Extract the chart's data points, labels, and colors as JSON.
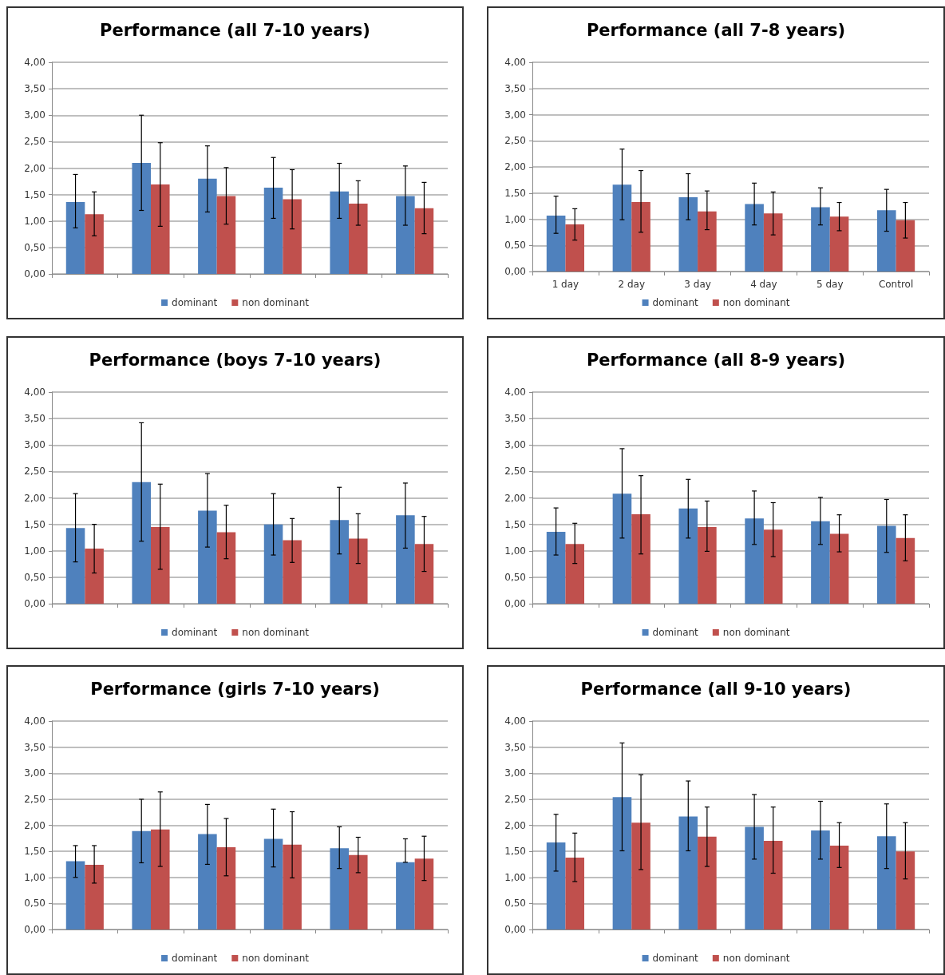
{
  "chart_data": [
    {
      "type": "bar",
      "title": "Performance (all 7-10 years)",
      "categories": [
        null,
        null,
        null,
        null,
        null,
        null
      ],
      "tick_labels": "y",
      "grid": "y",
      "legend": "bottom",
      "ylim": [
        0,
        4
      ],
      "yticks": [
        {
          "value": 0,
          "label": "0,00"
        },
        {
          "value": 0.5,
          "label": "0,50"
        },
        {
          "value": 1,
          "label": "1,00"
        },
        {
          "value": 1.5,
          "label": "1,50"
        },
        {
          "value": 2,
          "label": "2,00"
        },
        {
          "value": 2.5,
          "label": "2,50"
        },
        {
          "value": 3,
          "label": "3,00"
        },
        {
          "value": 3.5,
          "label": "3,50"
        },
        {
          "value": 4,
          "label": "4,00"
        }
      ],
      "series": [
        {
          "name": "dominant",
          "color": "#4f81bd",
          "values": [
            1.36,
            2.1,
            1.8,
            1.63,
            1.56,
            1.47
          ],
          "errors": [
            [
              0.87,
              1.88
            ],
            [
              1.2,
              3.0
            ],
            [
              1.17,
              2.42
            ],
            [
              1.05,
              2.2
            ],
            [
              1.05,
              2.09
            ],
            [
              0.92,
              2.04
            ]
          ]
        },
        {
          "name": "non dominant",
          "color": "#c0504d",
          "values": [
            1.13,
            1.69,
            1.47,
            1.41,
            1.33,
            1.24
          ],
          "errors": [
            [
              0.72,
              1.55
            ],
            [
              0.9,
              2.48
            ],
            [
              0.94,
              2.01
            ],
            [
              0.85,
              1.97
            ],
            [
              0.92,
              1.76
            ],
            [
              0.76,
              1.73
            ]
          ]
        }
      ]
    },
    {
      "type": "bar",
      "title": "Performance (all 7-8 years)",
      "categories": [
        "1 day",
        "2 day",
        "3 day",
        "4 day",
        "5 day",
        "Control"
      ],
      "grid": "y",
      "legend": "bottom",
      "ylim": [
        0,
        4
      ],
      "yticks": [
        {
          "value": 0,
          "label": "0,00"
        },
        {
          "value": 0.5,
          "label": "0,50"
        },
        {
          "value": 1,
          "label": "1,00"
        },
        {
          "value": 1.5,
          "label": "1,50"
        },
        {
          "value": 2,
          "label": "2,00"
        },
        {
          "value": 2.5,
          "label": "2,50"
        },
        {
          "value": 3,
          "label": "3,00"
        },
        {
          "value": 3.5,
          "label": "3,50"
        },
        {
          "value": 4,
          "label": "4,00"
        }
      ],
      "series": [
        {
          "name": "dominant",
          "color": "#4f81bd",
          "values": [
            1.07,
            1.66,
            1.42,
            1.29,
            1.23,
            1.17
          ],
          "errors": [
            [
              0.73,
              1.44
            ],
            [
              0.99,
              2.34
            ],
            [
              0.99,
              1.87
            ],
            [
              0.89,
              1.69
            ],
            [
              0.89,
              1.6
            ],
            [
              0.77,
              1.57
            ]
          ]
        },
        {
          "name": "non dominant",
          "color": "#c0504d",
          "values": [
            0.9,
            1.33,
            1.15,
            1.11,
            1.05,
            0.98
          ],
          "errors": [
            [
              0.6,
              1.2
            ],
            [
              0.75,
              1.93
            ],
            [
              0.8,
              1.54
            ],
            [
              0.7,
              1.52
            ],
            [
              0.78,
              1.32
            ],
            [
              0.64,
              1.32
            ]
          ]
        }
      ]
    },
    {
      "type": "bar",
      "title": "Performance (boys 7-10 years)",
      "categories": [
        null,
        null,
        null,
        null,
        null,
        null
      ],
      "tick_labels": "y",
      "grid": "y",
      "legend": "bottom",
      "ylim": [
        0,
        4
      ],
      "yticks": [
        {
          "value": 0,
          "label": "0,00"
        },
        {
          "value": 0.5,
          "label": "0,50"
        },
        {
          "value": 1,
          "label": "1,00"
        },
        {
          "value": 1.5,
          "label": "1,50"
        },
        {
          "value": 2,
          "label": "2,00"
        },
        {
          "value": 2.5,
          "label": "2,50"
        },
        {
          "value": 3,
          "label": "3,00"
        },
        {
          "value": 3.5,
          "label": "3,50"
        },
        {
          "value": 4,
          "label": "4,00"
        }
      ],
      "series": [
        {
          "name": "dominant",
          "color": "#4f81bd",
          "values": [
            1.43,
            2.3,
            1.76,
            1.5,
            1.58,
            1.67
          ],
          "errors": [
            [
              0.79,
              2.08
            ],
            [
              1.18,
              3.42
            ],
            [
              1.07,
              2.46
            ],
            [
              0.92,
              2.08
            ],
            [
              0.94,
              2.2
            ],
            [
              1.05,
              2.28
            ]
          ]
        },
        {
          "name": "non dominant",
          "color": "#c0504d",
          "values": [
            1.04,
            1.45,
            1.35,
            1.2,
            1.23,
            1.13
          ],
          "errors": [
            [
              0.58,
              1.5
            ],
            [
              0.65,
              2.26
            ],
            [
              0.85,
              1.86
            ],
            [
              0.78,
              1.61
            ],
            [
              0.76,
              1.7
            ],
            [
              0.61,
              1.65
            ]
          ]
        }
      ]
    },
    {
      "type": "bar",
      "title": "Performance (all 8-9 years)",
      "categories": [
        null,
        null,
        null,
        null,
        null,
        null
      ],
      "tick_labels": "y",
      "grid": "y",
      "legend": "bottom",
      "ylim": [
        0,
        4
      ],
      "yticks": [
        {
          "value": 0,
          "label": "0,00"
        },
        {
          "value": 0.5,
          "label": "0,50"
        },
        {
          "value": 1,
          "label": "1,00"
        },
        {
          "value": 1.5,
          "label": "1,50"
        },
        {
          "value": 2,
          "label": "2,00"
        },
        {
          "value": 2.5,
          "label": "2,50"
        },
        {
          "value": 3,
          "label": "3,00"
        },
        {
          "value": 3.5,
          "label": "3,50"
        },
        {
          "value": 4,
          "label": "4,00"
        }
      ],
      "series": [
        {
          "name": "dominant",
          "color": "#4f81bd",
          "values": [
            1.36,
            2.08,
            1.8,
            1.61,
            1.56,
            1.47
          ],
          "errors": [
            [
              0.92,
              1.81
            ],
            [
              1.24,
              2.93
            ],
            [
              1.24,
              2.35
            ],
            [
              1.12,
              2.13
            ],
            [
              1.12,
              2.01
            ],
            [
              0.97,
              1.97
            ]
          ]
        },
        {
          "name": "non dominant",
          "color": "#c0504d",
          "values": [
            1.13,
            1.69,
            1.45,
            1.4,
            1.32,
            1.24
          ],
          "errors": [
            [
              0.76,
              1.52
            ],
            [
              0.94,
              2.42
            ],
            [
              0.99,
              1.94
            ],
            [
              0.89,
              1.91
            ],
            [
              0.98,
              1.68
            ],
            [
              0.81,
              1.68
            ]
          ]
        }
      ]
    },
    {
      "type": "bar",
      "title": "Performance (girls 7-10 years)",
      "categories": [
        null,
        null,
        null,
        null,
        null,
        null
      ],
      "tick_labels": "y",
      "grid": "y",
      "legend": "bottom",
      "ylim": [
        0,
        4
      ],
      "yticks": [
        {
          "value": 0,
          "label": "0,00"
        },
        {
          "value": 0.5,
          "label": "0,50"
        },
        {
          "value": 1,
          "label": "1,00"
        },
        {
          "value": 1.5,
          "label": "1,50"
        },
        {
          "value": 2,
          "label": "2,00"
        },
        {
          "value": 2.5,
          "label": "2,50"
        },
        {
          "value": 3,
          "label": "3,00"
        },
        {
          "value": 3.5,
          "label": "3,50"
        },
        {
          "value": 4,
          "label": "4,00"
        }
      ],
      "series": [
        {
          "name": "dominant",
          "color": "#4f81bd",
          "values": [
            1.31,
            1.89,
            1.83,
            1.74,
            1.56,
            1.29
          ],
          "errors": [
            [
              1.0,
              1.61
            ],
            [
              1.28,
              2.5
            ],
            [
              1.25,
              2.4
            ],
            [
              1.2,
              2.31
            ],
            [
              1.17,
              1.97
            ],
            [
              1.29,
              1.74
            ]
          ]
        },
        {
          "name": "non dominant",
          "color": "#c0504d",
          "values": [
            1.24,
            1.92,
            1.58,
            1.63,
            1.43,
            1.36
          ],
          "errors": [
            [
              0.89,
              1.61
            ],
            [
              1.21,
              2.64
            ],
            [
              1.03,
              2.13
            ],
            [
              0.99,
              2.26
            ],
            [
              1.09,
              1.77
            ],
            [
              0.94,
              1.79
            ]
          ]
        }
      ]
    },
    {
      "type": "bar",
      "title": "Performance (all 9-10 years)",
      "categories": [
        null,
        null,
        null,
        null,
        null,
        null
      ],
      "tick_labels": "y",
      "grid": "y",
      "legend": "bottom",
      "ylim": [
        0,
        4
      ],
      "yticks": [
        {
          "value": 0,
          "label": "0,00"
        },
        {
          "value": 0.5,
          "label": "0,50"
        },
        {
          "value": 1,
          "label": "1,00"
        },
        {
          "value": 1.5,
          "label": "1,50"
        },
        {
          "value": 2,
          "label": "2,00"
        },
        {
          "value": 2.5,
          "label": "2,50"
        },
        {
          "value": 3,
          "label": "3,00"
        },
        {
          "value": 3.5,
          "label": "3,50"
        },
        {
          "value": 4,
          "label": "4,00"
        }
      ],
      "series": [
        {
          "name": "dominant",
          "color": "#4f81bd",
          "values": [
            1.67,
            2.54,
            2.17,
            1.97,
            1.9,
            1.79
          ],
          "errors": [
            [
              1.12,
              2.21
            ],
            [
              1.51,
              3.58
            ],
            [
              1.51,
              2.85
            ],
            [
              1.35,
              2.59
            ],
            [
              1.35,
              2.46
            ],
            [
              1.17,
              2.41
            ]
          ]
        },
        {
          "name": "non dominant",
          "color": "#c0504d",
          "values": [
            1.38,
            2.05,
            1.78,
            1.7,
            1.61,
            1.5
          ],
          "errors": [
            [
              0.92,
              1.85
            ],
            [
              1.15,
              2.97
            ],
            [
              1.21,
              2.35
            ],
            [
              1.08,
              2.35
            ],
            [
              1.19,
              2.05
            ],
            [
              0.97,
              2.05
            ]
          ]
        }
      ]
    }
  ]
}
